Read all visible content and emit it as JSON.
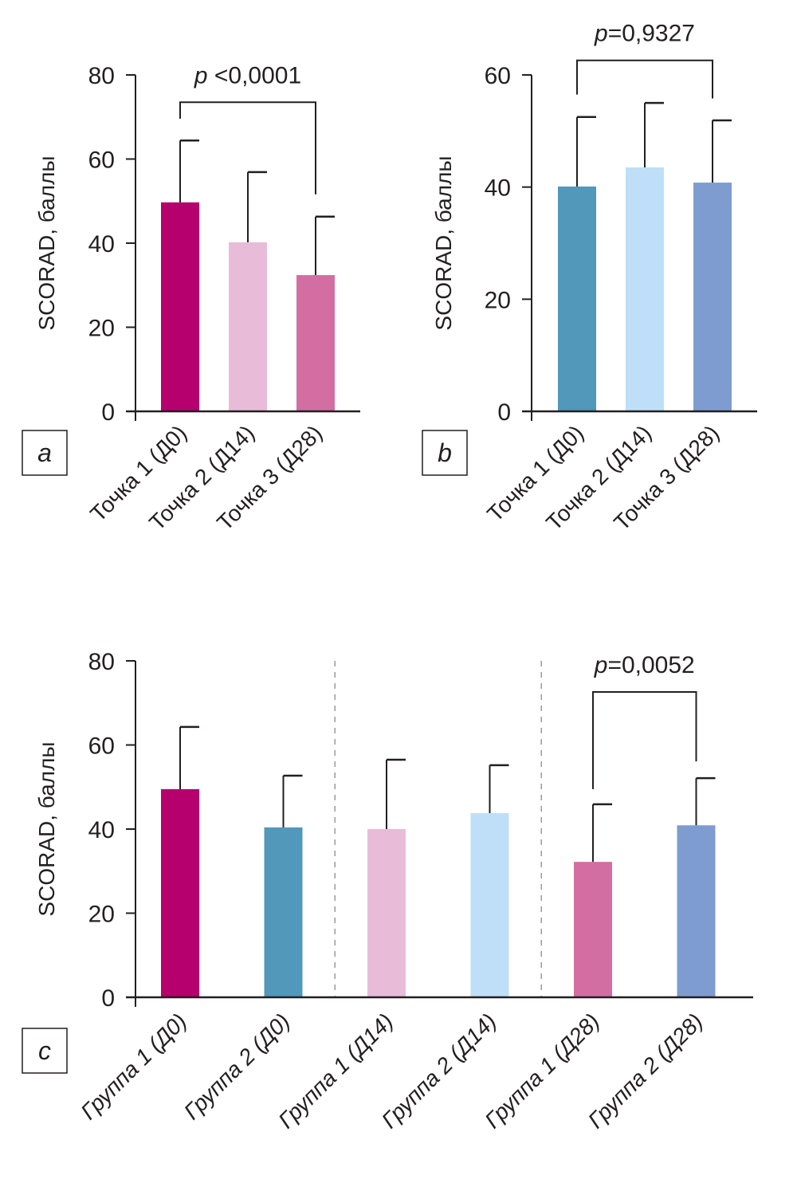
{
  "chart_data": [
    {
      "type": "bar",
      "panel": "a",
      "ylabel": "SCORAD, баллы",
      "ylim": [
        0,
        80
      ],
      "yticks": [
        0,
        20,
        40,
        60,
        80
      ],
      "categories": [
        "Точка 1 (Д0)",
        "Точка 2 (Д14)",
        "Точка 3 (Д28)"
      ],
      "values": [
        49.7,
        40.2,
        32.4
      ],
      "error_upper": [
        64.4,
        56.9,
        46.3
      ],
      "colors": [
        "#b5006d",
        "#e8bcd8",
        "#d36ea2"
      ],
      "comparison": {
        "from": 0,
        "to": 2,
        "label_prefix": "p",
        "label_value": " <0,0001",
        "y": 73.5,
        "left_end": 69.6,
        "right_end": 51.6
      }
    },
    {
      "type": "bar",
      "panel": "b",
      "ylabel": "SCORAD, баллы",
      "ylim": [
        0,
        60
      ],
      "yticks": [
        0,
        20,
        40,
        60
      ],
      "categories": [
        "Точка 1 (Д0)",
        "Точка 2 (Д14)",
        "Точка 3 (Д28)"
      ],
      "values": [
        40.1,
        43.5,
        40.8
      ],
      "error_upper": [
        52.5,
        55.0,
        51.9
      ],
      "colors": [
        "#5198ba",
        "#bedff7",
        "#7f9cd0"
      ],
      "comparison": {
        "from": 0,
        "to": 2,
        "label_prefix": "p",
        "label_value": "=0,9327",
        "y": 62.6,
        "left_end": 56.5,
        "right_end": 55.8
      }
    },
    {
      "type": "bar",
      "panel": "c",
      "ylabel": "SCORAD, баллы",
      "ylim": [
        0,
        80
      ],
      "yticks": [
        0,
        20,
        40,
        60,
        80
      ],
      "categories": [
        "Группа 1 (Д0)",
        "Группа 2 (Д0)",
        "Группа 1 (Д14)",
        "Группа 2 (Д14)",
        "Группа 1 (Д28)",
        "Группа 2 (Д28)"
      ],
      "values": [
        49.5,
        40.4,
        40.0,
        43.8,
        32.2,
        40.9
      ],
      "error_upper": [
        64.3,
        52.7,
        56.5,
        55.2,
        45.9,
        52.1
      ],
      "colors": [
        "#b5006d",
        "#5198ba",
        "#e8bcd8",
        "#bedff7",
        "#d36ea2",
        "#7f9cd0"
      ],
      "separators_after": [
        1,
        3
      ],
      "comparison": {
        "from": 4,
        "to": 5,
        "label_prefix": "p",
        "label_value": "=0,0052",
        "y": 72.6,
        "left_end": 49.5,
        "right_end": 56.1
      }
    }
  ]
}
